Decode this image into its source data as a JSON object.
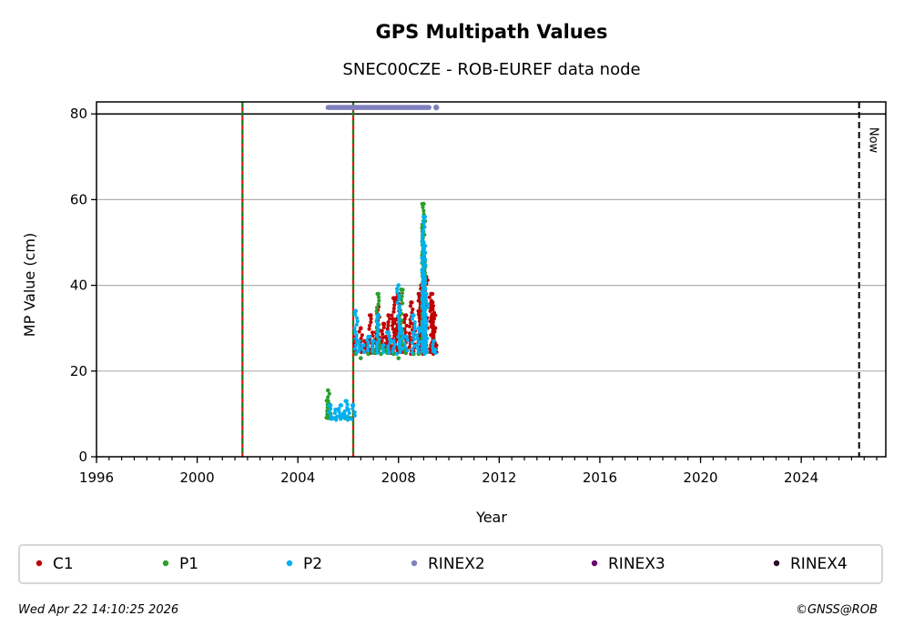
{
  "chart_data": {
    "type": "scatter",
    "title": "GPS Multipath Values",
    "subtitle": "SNEC00CZE - ROB-EUREF data node",
    "xlabel": "Year",
    "ylabel": "MP Value (cm)",
    "xlim": [
      1996,
      2027.36
    ],
    "ylim": [
      0,
      82.8
    ],
    "x_ticks": [
      1996,
      2000,
      2004,
      2008,
      2012,
      2016,
      2020,
      2024
    ],
    "x_tick_labels": [
      "1996",
      "2000",
      "2004",
      "2008",
      "2012",
      "2016",
      "2020",
      "2024"
    ],
    "x_minor_step": 0.5,
    "y_ticks": [
      0,
      20,
      40,
      60,
      80
    ],
    "y_tick_labels": [
      "0",
      "20",
      "40",
      "60",
      "80"
    ],
    "grid": "y",
    "now_line": {
      "x": 2026.3,
      "label": "Now"
    },
    "event_lines": [
      {
        "x": 2001.8,
        "colors": [
          "#e8110f",
          "#1f7f1f"
        ]
      },
      {
        "x": 2006.2,
        "colors": [
          "#e8110f",
          "#1f7f1f"
        ]
      }
    ],
    "rinex_bar": {
      "series": "RINEX2",
      "x_start": 2005.2,
      "x_end": 2009.5,
      "y": 81.5
    },
    "series": [
      {
        "name": "C1",
        "color": "#c00000",
        "points": [
          [
            2006.3,
            28
          ],
          [
            2006.5,
            30
          ],
          [
            2006.7,
            27
          ],
          [
            2006.9,
            33
          ],
          [
            2007.1,
            29
          ],
          [
            2007.2,
            35
          ],
          [
            2007.4,
            31
          ],
          [
            2007.5,
            28
          ],
          [
            2007.6,
            33
          ],
          [
            2007.8,
            37
          ],
          [
            2007.9,
            32
          ],
          [
            2008.0,
            38
          ],
          [
            2008.1,
            30
          ],
          [
            2008.3,
            33
          ],
          [
            2008.5,
            36
          ],
          [
            2008.6,
            31
          ],
          [
            2008.8,
            38
          ],
          [
            2008.9,
            40
          ],
          [
            2009.0,
            35
          ],
          [
            2009.1,
            42
          ],
          [
            2009.3,
            38
          ],
          [
            2009.35,
            36
          ],
          [
            2009.4,
            33
          ],
          [
            2009.45,
            30
          ]
        ]
      },
      {
        "name": "P1",
        "color": "#2ca02c",
        "points": [
          [
            2005.2,
            15.5
          ],
          [
            2005.2,
            13
          ],
          [
            2005.3,
            10
          ],
          [
            2005.5,
            9
          ],
          [
            2005.7,
            9
          ],
          [
            2005.9,
            9
          ],
          [
            2006.1,
            9
          ],
          [
            2006.3,
            24
          ],
          [
            2006.5,
            23
          ],
          [
            2006.8,
            24
          ],
          [
            2007.0,
            25
          ],
          [
            2007.2,
            38
          ],
          [
            2007.3,
            24
          ],
          [
            2007.5,
            25
          ],
          [
            2007.8,
            24
          ],
          [
            2008.0,
            23
          ],
          [
            2008.1,
            39
          ],
          [
            2008.3,
            25
          ],
          [
            2008.6,
            24
          ],
          [
            2008.8,
            24
          ],
          [
            2009.0,
            59
          ],
          [
            2009.0,
            55
          ],
          [
            2009.0,
            46
          ],
          [
            2009.1,
            26
          ]
        ]
      },
      {
        "name": "P2",
        "color": "#00b0f0",
        "points": [
          [
            2005.3,
            12
          ],
          [
            2005.4,
            9
          ],
          [
            2005.5,
            11
          ],
          [
            2005.7,
            12
          ],
          [
            2005.8,
            10
          ],
          [
            2005.9,
            13
          ],
          [
            2006.0,
            11
          ],
          [
            2006.2,
            12
          ],
          [
            2006.3,
            34
          ],
          [
            2006.4,
            27
          ],
          [
            2006.6,
            26
          ],
          [
            2006.8,
            28
          ],
          [
            2007.0,
            27
          ],
          [
            2007.2,
            33
          ],
          [
            2007.4,
            26
          ],
          [
            2007.6,
            29
          ],
          [
            2007.8,
            27
          ],
          [
            2008.0,
            40
          ],
          [
            2008.1,
            30
          ],
          [
            2008.3,
            28
          ],
          [
            2008.6,
            33
          ],
          [
            2008.8,
            30
          ],
          [
            2009.0,
            56
          ],
          [
            2009.0,
            50
          ],
          [
            2009.0,
            43
          ],
          [
            2009.1,
            38
          ],
          [
            2009.4,
            27
          ],
          [
            2009.45,
            25
          ]
        ]
      },
      {
        "name": "RINEX2",
        "color": "#8080c0",
        "points": []
      },
      {
        "name": "RINEX3",
        "color": "#6a006a",
        "points": []
      },
      {
        "name": "RINEX4",
        "color": "#2a0a2a",
        "points": []
      }
    ]
  },
  "footer": {
    "timestamp": "Wed Apr 22 14:10:25 2026",
    "copyright": "©GNSS@ROB"
  }
}
